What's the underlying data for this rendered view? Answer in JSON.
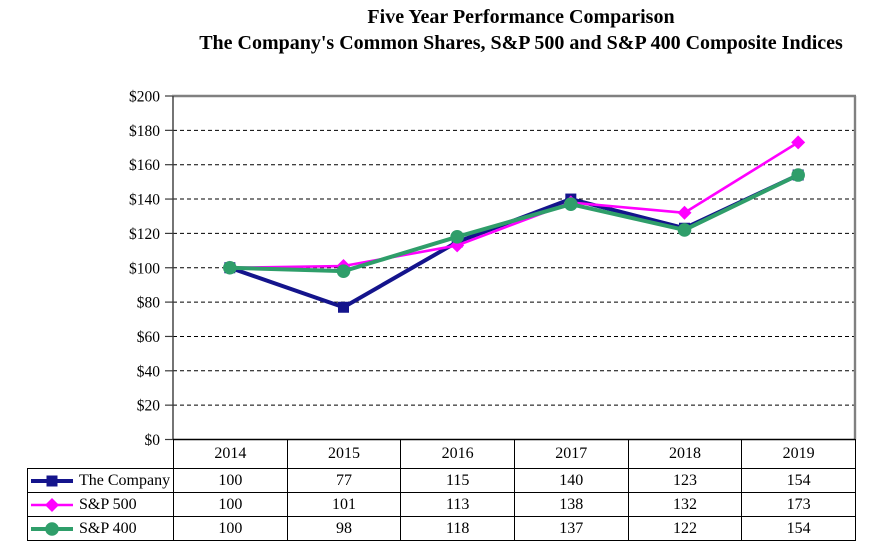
{
  "header": {
    "title_line1": "Five Year Performance Comparison",
    "title_line2": "The Company's Common Shares, S&P 500 and S&P 400 Composite Indices"
  },
  "chart_data": {
    "type": "line",
    "title": "Five Year Performance Comparison",
    "subtitle": "The Company's Common Shares, S&P 500 and S&P 400 Composite Indices",
    "categories": [
      "2014",
      "2015",
      "2016",
      "2017",
      "2018",
      "2019"
    ],
    "series": [
      {
        "name": "The Company",
        "color": "#14148C",
        "marker": "square",
        "line_width": 4,
        "values": [
          100,
          77,
          115,
          140,
          123,
          154
        ]
      },
      {
        "name": "S&P 500",
        "color": "#FF00FF",
        "marker": "diamond",
        "line_width": 2.6,
        "values": [
          100,
          101,
          113,
          138,
          132,
          173
        ]
      },
      {
        "name": "S&P 400",
        "color": "#2F9E6A",
        "marker": "circle",
        "line_width": 4,
        "values": [
          100,
          98,
          118,
          137,
          122,
          154
        ]
      }
    ],
    "ylim": [
      0,
      200
    ],
    "yticks": {
      "values": [
        0,
        20,
        40,
        60,
        80,
        100,
        120,
        140,
        160,
        180,
        200
      ],
      "labels": [
        "$0",
        "$20",
        "$40",
        "$60",
        "$80",
        "$100",
        "$120",
        "$140",
        "$160",
        "$180",
        "$200"
      ]
    },
    "xlabel": "",
    "ylabel": "",
    "grid": "horizontal-dashed",
    "legend_position": "table-left",
    "colors": {
      "axis": "#3a3a3a",
      "frame_gray": "#808080",
      "grid": "#000000",
      "text": "#000000"
    }
  }
}
